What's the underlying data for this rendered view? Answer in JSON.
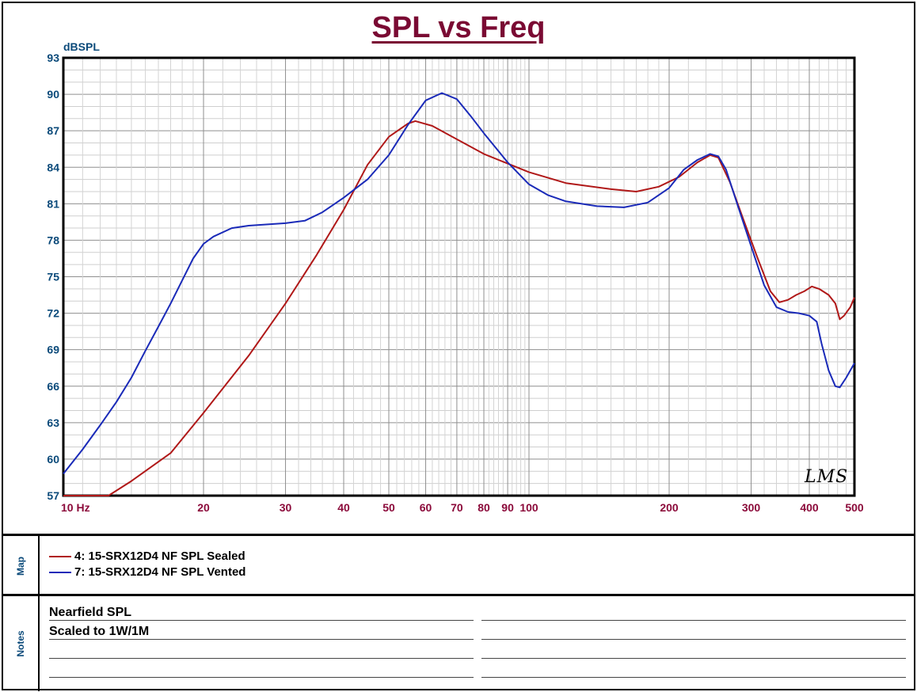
{
  "chart_data": {
    "type": "line",
    "title": "SPL vs Freq",
    "ylabel": "dBSPL",
    "xlabel": "",
    "x_scale": "log",
    "xlim": [
      10,
      500
    ],
    "ylim": [
      57,
      93
    ],
    "x_ticks": [
      10,
      20,
      30,
      40,
      50,
      60,
      70,
      80,
      90,
      100,
      200,
      300,
      400,
      500
    ],
    "x_tick_labels": [
      "10 Hz",
      "20",
      "30",
      "40",
      "50",
      "60",
      "70",
      "80",
      "90",
      "100",
      "200",
      "300",
      "400",
      "500"
    ],
    "y_ticks": [
      57,
      60,
      63,
      66,
      69,
      72,
      75,
      78,
      81,
      84,
      87,
      90,
      93
    ],
    "y_tick_labels": [
      "57",
      "60",
      "63",
      "66",
      "69",
      "72",
      "75",
      "78",
      "81",
      "84",
      "87",
      "90",
      "93"
    ],
    "grid": true,
    "legend_placement": "below chart (Map panel)",
    "series": [
      {
        "name": "4: 15-SRX12D4 NF SPL Sealed",
        "color": "#b01818",
        "points": [
          [
            10,
            57
          ],
          [
            12.5,
            57
          ],
          [
            14,
            58.2
          ],
          [
            17,
            60.5
          ],
          [
            20,
            63.8
          ],
          [
            25,
            68.5
          ],
          [
            30,
            72.8
          ],
          [
            35,
            76.8
          ],
          [
            40,
            80.5
          ],
          [
            45,
            84.2
          ],
          [
            50,
            86.5
          ],
          [
            55,
            87.6
          ],
          [
            57,
            87.8
          ],
          [
            62,
            87.4
          ],
          [
            70,
            86.3
          ],
          [
            80,
            85.1
          ],
          [
            90,
            84.3
          ],
          [
            100,
            83.6
          ],
          [
            120,
            82.7
          ],
          [
            150,
            82.2
          ],
          [
            170,
            82.0
          ],
          [
            190,
            82.4
          ],
          [
            210,
            83.2
          ],
          [
            230,
            84.4
          ],
          [
            245,
            85.0
          ],
          [
            255,
            84.8
          ],
          [
            270,
            82.8
          ],
          [
            290,
            79.5
          ],
          [
            310,
            76.5
          ],
          [
            330,
            73.8
          ],
          [
            345,
            72.9
          ],
          [
            360,
            73.1
          ],
          [
            375,
            73.5
          ],
          [
            390,
            73.8
          ],
          [
            405,
            74.2
          ],
          [
            420,
            74.0
          ],
          [
            440,
            73.5
          ],
          [
            455,
            72.8
          ],
          [
            465,
            71.5
          ],
          [
            475,
            71.8
          ],
          [
            490,
            72.5
          ],
          [
            500,
            73.3
          ]
        ]
      },
      {
        "name": "7: 15-SRX12D4 NF SPL Vented",
        "color": "#1a2ab8",
        "points": [
          [
            10,
            58.8
          ],
          [
            11,
            60.8
          ],
          [
            12,
            62.8
          ],
          [
            13,
            64.7
          ],
          [
            14,
            66.7
          ],
          [
            15,
            68.9
          ],
          [
            16,
            70.9
          ],
          [
            17,
            72.8
          ],
          [
            18,
            74.7
          ],
          [
            19,
            76.5
          ],
          [
            20,
            77.7
          ],
          [
            21,
            78.3
          ],
          [
            23,
            79.0
          ],
          [
            25,
            79.2
          ],
          [
            30,
            79.4
          ],
          [
            33,
            79.6
          ],
          [
            36,
            80.3
          ],
          [
            40,
            81.5
          ],
          [
            45,
            83.0
          ],
          [
            50,
            85.0
          ],
          [
            55,
            87.5
          ],
          [
            60,
            89.5
          ],
          [
            65,
            90.1
          ],
          [
            70,
            89.6
          ],
          [
            75,
            88.2
          ],
          [
            80,
            86.8
          ],
          [
            90,
            84.4
          ],
          [
            100,
            82.6
          ],
          [
            110,
            81.7
          ],
          [
            120,
            81.2
          ],
          [
            140,
            80.8
          ],
          [
            160,
            80.7
          ],
          [
            180,
            81.1
          ],
          [
            200,
            82.3
          ],
          [
            215,
            83.8
          ],
          [
            230,
            84.6
          ],
          [
            245,
            85.1
          ],
          [
            255,
            84.9
          ],
          [
            265,
            83.8
          ],
          [
            280,
            81.0
          ],
          [
            300,
            77.5
          ],
          [
            320,
            74.3
          ],
          [
            340,
            72.5
          ],
          [
            360,
            72.1
          ],
          [
            380,
            72.0
          ],
          [
            400,
            71.8
          ],
          [
            415,
            71.3
          ],
          [
            425,
            69.5
          ],
          [
            440,
            67.3
          ],
          [
            455,
            66.0
          ],
          [
            465,
            65.9
          ],
          [
            480,
            66.7
          ],
          [
            500,
            67.9
          ]
        ]
      }
    ]
  },
  "map_panel": {
    "label": "Map",
    "legend": [
      {
        "text": "4: 15-SRX12D4 NF SPL Sealed",
        "color": "#b01818"
      },
      {
        "text": "7: 15-SRX12D4 NF SPL Vented",
        "color": "#1a2ab8"
      }
    ]
  },
  "notes_panel": {
    "label": "Notes",
    "lines": [
      "Nearfield SPL",
      "Scaled to 1W/1M"
    ]
  },
  "watermark": "LMS",
  "colors": {
    "title": "#7a0a33",
    "y_tick_text": "#0b4a7a",
    "x_tick_text": "#8b0a3a",
    "plot_border": "#000000",
    "grid": "#a0a0a0"
  }
}
